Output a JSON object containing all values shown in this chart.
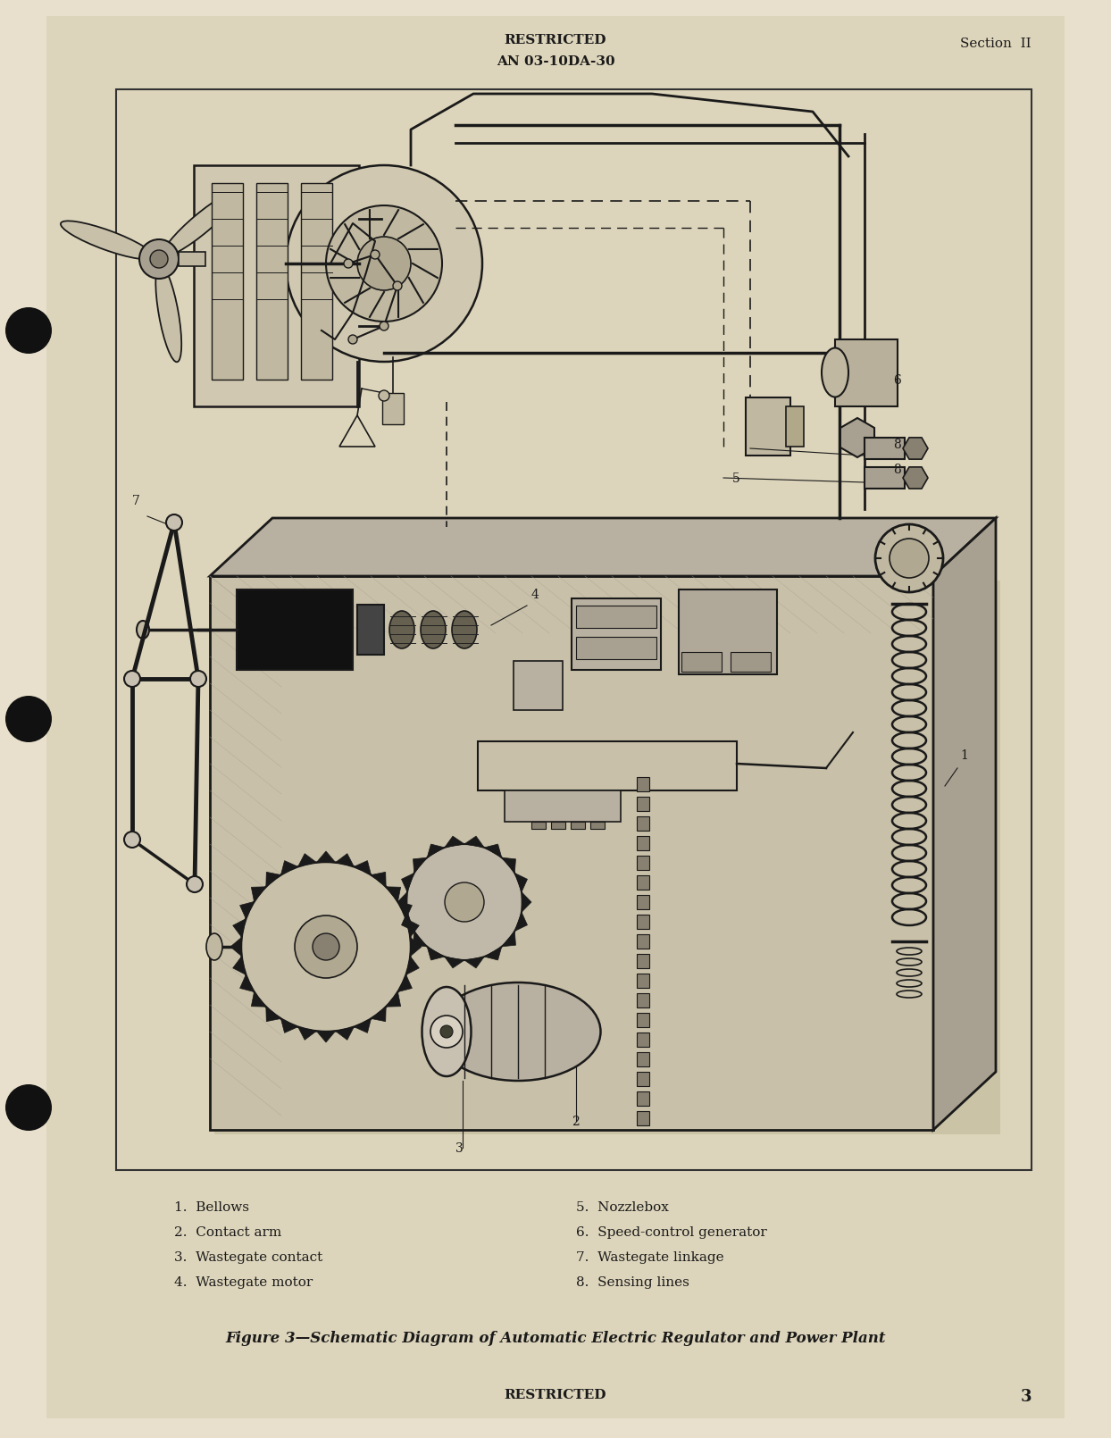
{
  "page_bg": "#e8e0cc",
  "paper_bg": "#e0d8c4",
  "diagram_bg": "#ddd5bb",
  "fc": "#1a1a1a",
  "dark": "#1a1a1a",
  "top_line1": "RESTRICTED",
  "top_line2": "AN 03-10DA-30",
  "top_right": "Section  II",
  "bottom_center": "RESTRICTED",
  "bottom_right": "3",
  "caption": "Figure 3—Schematic Diagram of Automatic Electric Regulator and Power Plant",
  "legend_left": [
    "1.  Bellows",
    "2.  Contact arm",
    "3.  Wastegate contact",
    "4.  Wastegate motor"
  ],
  "legend_right": [
    "5.  Nozzlebox",
    "6.  Speed-control generator",
    "7.  Wastegate linkage",
    "8.  Sensing lines"
  ]
}
